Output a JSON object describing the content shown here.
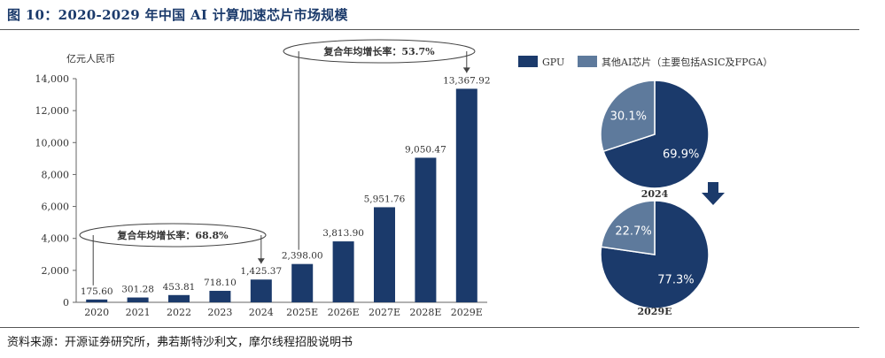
{
  "title": "图 10：2020-2029 年中国 AI 计算加速芯片市场规模",
  "source": "资料来源：开源证券研究所，弗若斯特沙利文，摩尔线程招股说明书",
  "chart_data": [
    {
      "type": "bar",
      "ylabel": "亿元人民币",
      "categories": [
        "2020",
        "2021",
        "2022",
        "2023",
        "2024",
        "2025E",
        "2026E",
        "2027E",
        "2028E",
        "2029E"
      ],
      "values": [
        175.6,
        301.28,
        453.81,
        718.1,
        1425.37,
        2398.0,
        3813.9,
        5951.76,
        9050.47,
        13367.92
      ],
      "value_labels": [
        "175.60",
        "301.28",
        "453.81",
        "718.10",
        "1,425.37",
        "2,398.00",
        "3,813.90",
        "5,951.76",
        "9,050.47",
        "13,367.92"
      ],
      "ylim": [
        0,
        14000
      ],
      "yticks": [
        0,
        2000,
        4000,
        6000,
        8000,
        10000,
        12000,
        14000
      ],
      "ytick_labels": [
        "0",
        "2,000",
        "4,000",
        "6,000",
        "8,000",
        "10,000",
        "12,000",
        "14,000"
      ],
      "color": "#1b3a6b",
      "annotations": [
        {
          "text": "复合年均增长率：68.8%",
          "from": "2020",
          "to": "2024"
        },
        {
          "text": "复合年均增长率：53.7%",
          "from": "2025E",
          "to": "2029E"
        }
      ]
    },
    {
      "type": "pie",
      "title": "2024",
      "labels": [
        "GPU",
        "其他AI芯片（主要包括ASIC及FPGA）"
      ],
      "values": [
        69.9,
        30.1
      ],
      "value_labels": [
        "69.9%",
        "30.1%"
      ],
      "colors": [
        "#1b3a6b",
        "#5e7a9c"
      ]
    },
    {
      "type": "pie",
      "title": "2029E",
      "labels": [
        "GPU",
        "其他AI芯片（主要包括ASIC及FPGA）"
      ],
      "values": [
        77.3,
        22.7
      ],
      "value_labels": [
        "77.3%",
        "22.7%"
      ],
      "colors": [
        "#1b3a6b",
        "#5e7a9c"
      ]
    }
  ],
  "legend": [
    {
      "label": "GPU",
      "color": "#1b3a6b"
    },
    {
      "label": "其他AI芯片（主要包括ASIC及FPGA）",
      "color": "#5e7a9c"
    }
  ]
}
